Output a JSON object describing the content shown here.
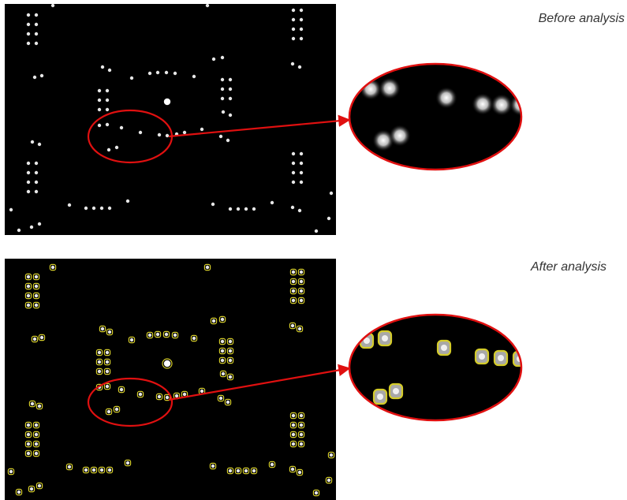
{
  "captions": {
    "before": "Before analysis",
    "after": "After analysis"
  },
  "colors": {
    "background": "#000000",
    "spot": "#e6e6e6",
    "highlight_ring": "#e01010",
    "detection_outline": "#d4cc2a"
  },
  "images": {
    "before": "microscope-spot-array-raw",
    "after": "microscope-spot-array-annotated"
  }
}
